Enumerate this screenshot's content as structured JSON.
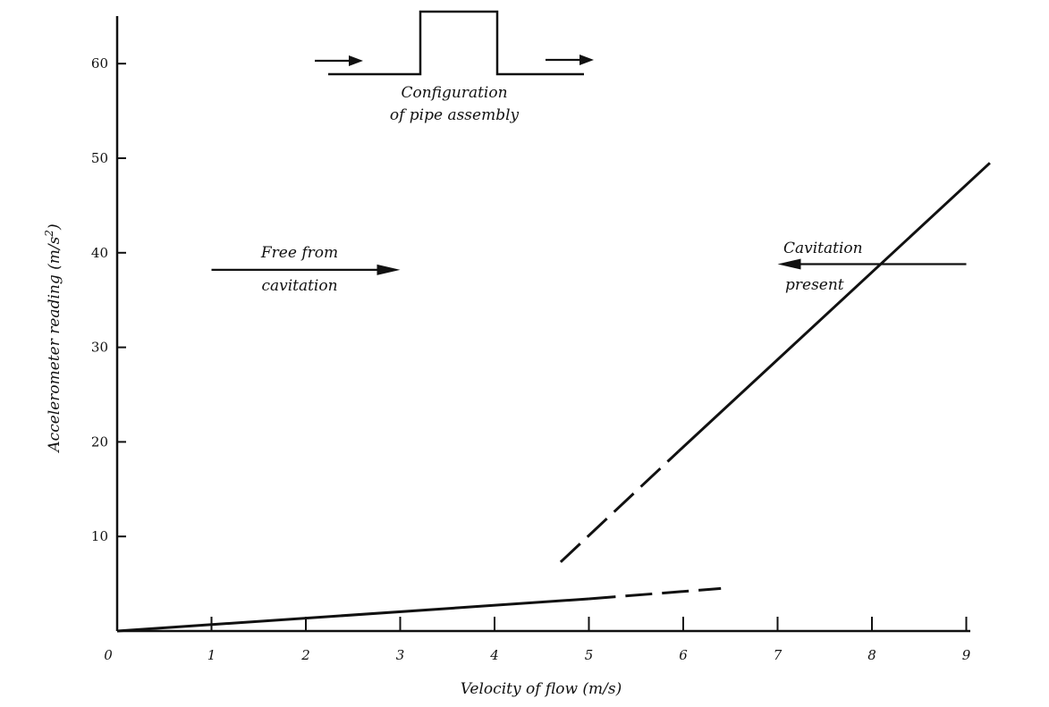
{
  "chart_data": {
    "type": "line",
    "title": "",
    "xlabel": "Velocity of flow (m/s)",
    "ylabel_main": "Accelerometer reading (m/s",
    "ylabel_sup": "2",
    "ylabel_close": ")",
    "xlim": [
      0,
      9
    ],
    "ylim": [
      0,
      65
    ],
    "x_ticks": [
      {
        "value": 0,
        "label": "0"
      },
      {
        "value": 1,
        "label": "1"
      },
      {
        "value": 2,
        "label": "2"
      },
      {
        "value": 3,
        "label": "3"
      },
      {
        "value": 4,
        "label": "4"
      },
      {
        "value": 5,
        "label": "5"
      },
      {
        "value": 6,
        "label": "6"
      },
      {
        "value": 7,
        "label": "7"
      },
      {
        "value": 8,
        "label": "8"
      },
      {
        "value": 9,
        "label": "9"
      }
    ],
    "y_ticks": [
      {
        "value": 10,
        "label": "10"
      },
      {
        "value": 20,
        "label": "20"
      },
      {
        "value": 30,
        "label": "30"
      },
      {
        "value": 40,
        "label": "40"
      },
      {
        "value": 50,
        "label": "50"
      },
      {
        "value": 60,
        "label": "60"
      }
    ],
    "grid": false,
    "legend": "none",
    "series": [
      {
        "style": "solid",
        "points": [
          [
            0,
            0
          ],
          [
            5,
            3.4
          ]
        ]
      },
      {
        "style": "dashed",
        "points": [
          [
            5,
            3.4
          ],
          [
            6.4,
            4.5
          ]
        ]
      },
      {
        "style": "dashed",
        "points": [
          [
            4.7,
            7.3
          ],
          [
            5.95,
            19.0
          ]
        ]
      },
      {
        "style": "solid",
        "points": [
          [
            5.95,
            19.0
          ],
          [
            9.25,
            49.5
          ]
        ]
      }
    ],
    "annotations": [
      {
        "id": "free-from-cavitation",
        "lines": [
          "Free from",
          "cavitation"
        ],
        "arrow_direction": "right",
        "arrow_from": [
          1.0,
          38.2
        ],
        "arrow_to": [
          3.0,
          38.2
        ]
      },
      {
        "id": "cavitation-present",
        "lines": [
          "Cavitation",
          "present"
        ],
        "arrow_direction": "left",
        "arrow_from": [
          9.0,
          38.8
        ],
        "arrow_to": [
          7.0,
          38.8
        ]
      }
    ],
    "inset": {
      "caption_lines": [
        "Configuration",
        "of pipe assembly"
      ],
      "flow_direction": "right"
    },
    "colors": {
      "ink": "#111111"
    }
  }
}
